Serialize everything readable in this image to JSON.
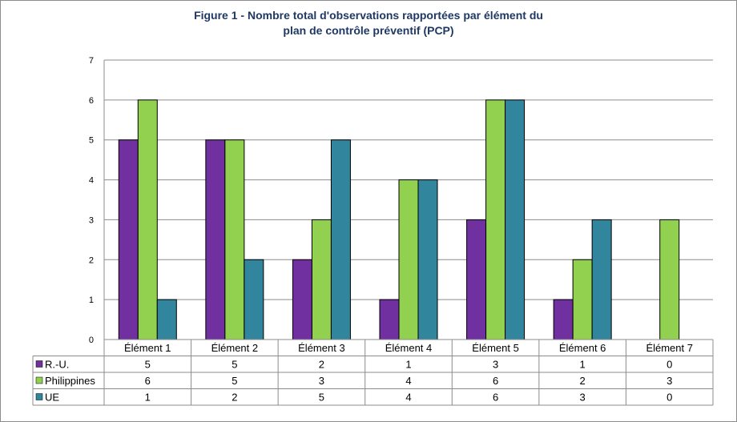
{
  "chart_data": {
    "type": "bar",
    "title": "Figure 1 - Nombre total d'observations rapportées par élément du plan de contrôle préventif (PCP)",
    "title_lines": [
      "Figure 1 - Nombre total d'observations rapportées par élément du",
      "plan de contrôle préventif (PCP)"
    ],
    "categories": [
      "Élément 1",
      "Élément 2",
      "Élément 3",
      "Élément 4",
      "Élément 5",
      "Élément 6",
      "Élément 7"
    ],
    "series": [
      {
        "name": "R.-U.",
        "color": "#7030a0",
        "values": [
          5,
          5,
          2,
          1,
          3,
          1,
          0
        ]
      },
      {
        "name": "Philippines",
        "color": "#92d050",
        "values": [
          6,
          5,
          3,
          4,
          6,
          2,
          3
        ]
      },
      {
        "name": "UE",
        "color": "#31859c",
        "values": [
          1,
          2,
          5,
          4,
          6,
          3,
          0
        ]
      }
    ],
    "ylim": [
      0,
      7
    ],
    "yticks": [
      0,
      1,
      2,
      3,
      4,
      5,
      6,
      7
    ],
    "grid": true,
    "legend": "data-table",
    "xlabel": "",
    "ylabel": ""
  }
}
